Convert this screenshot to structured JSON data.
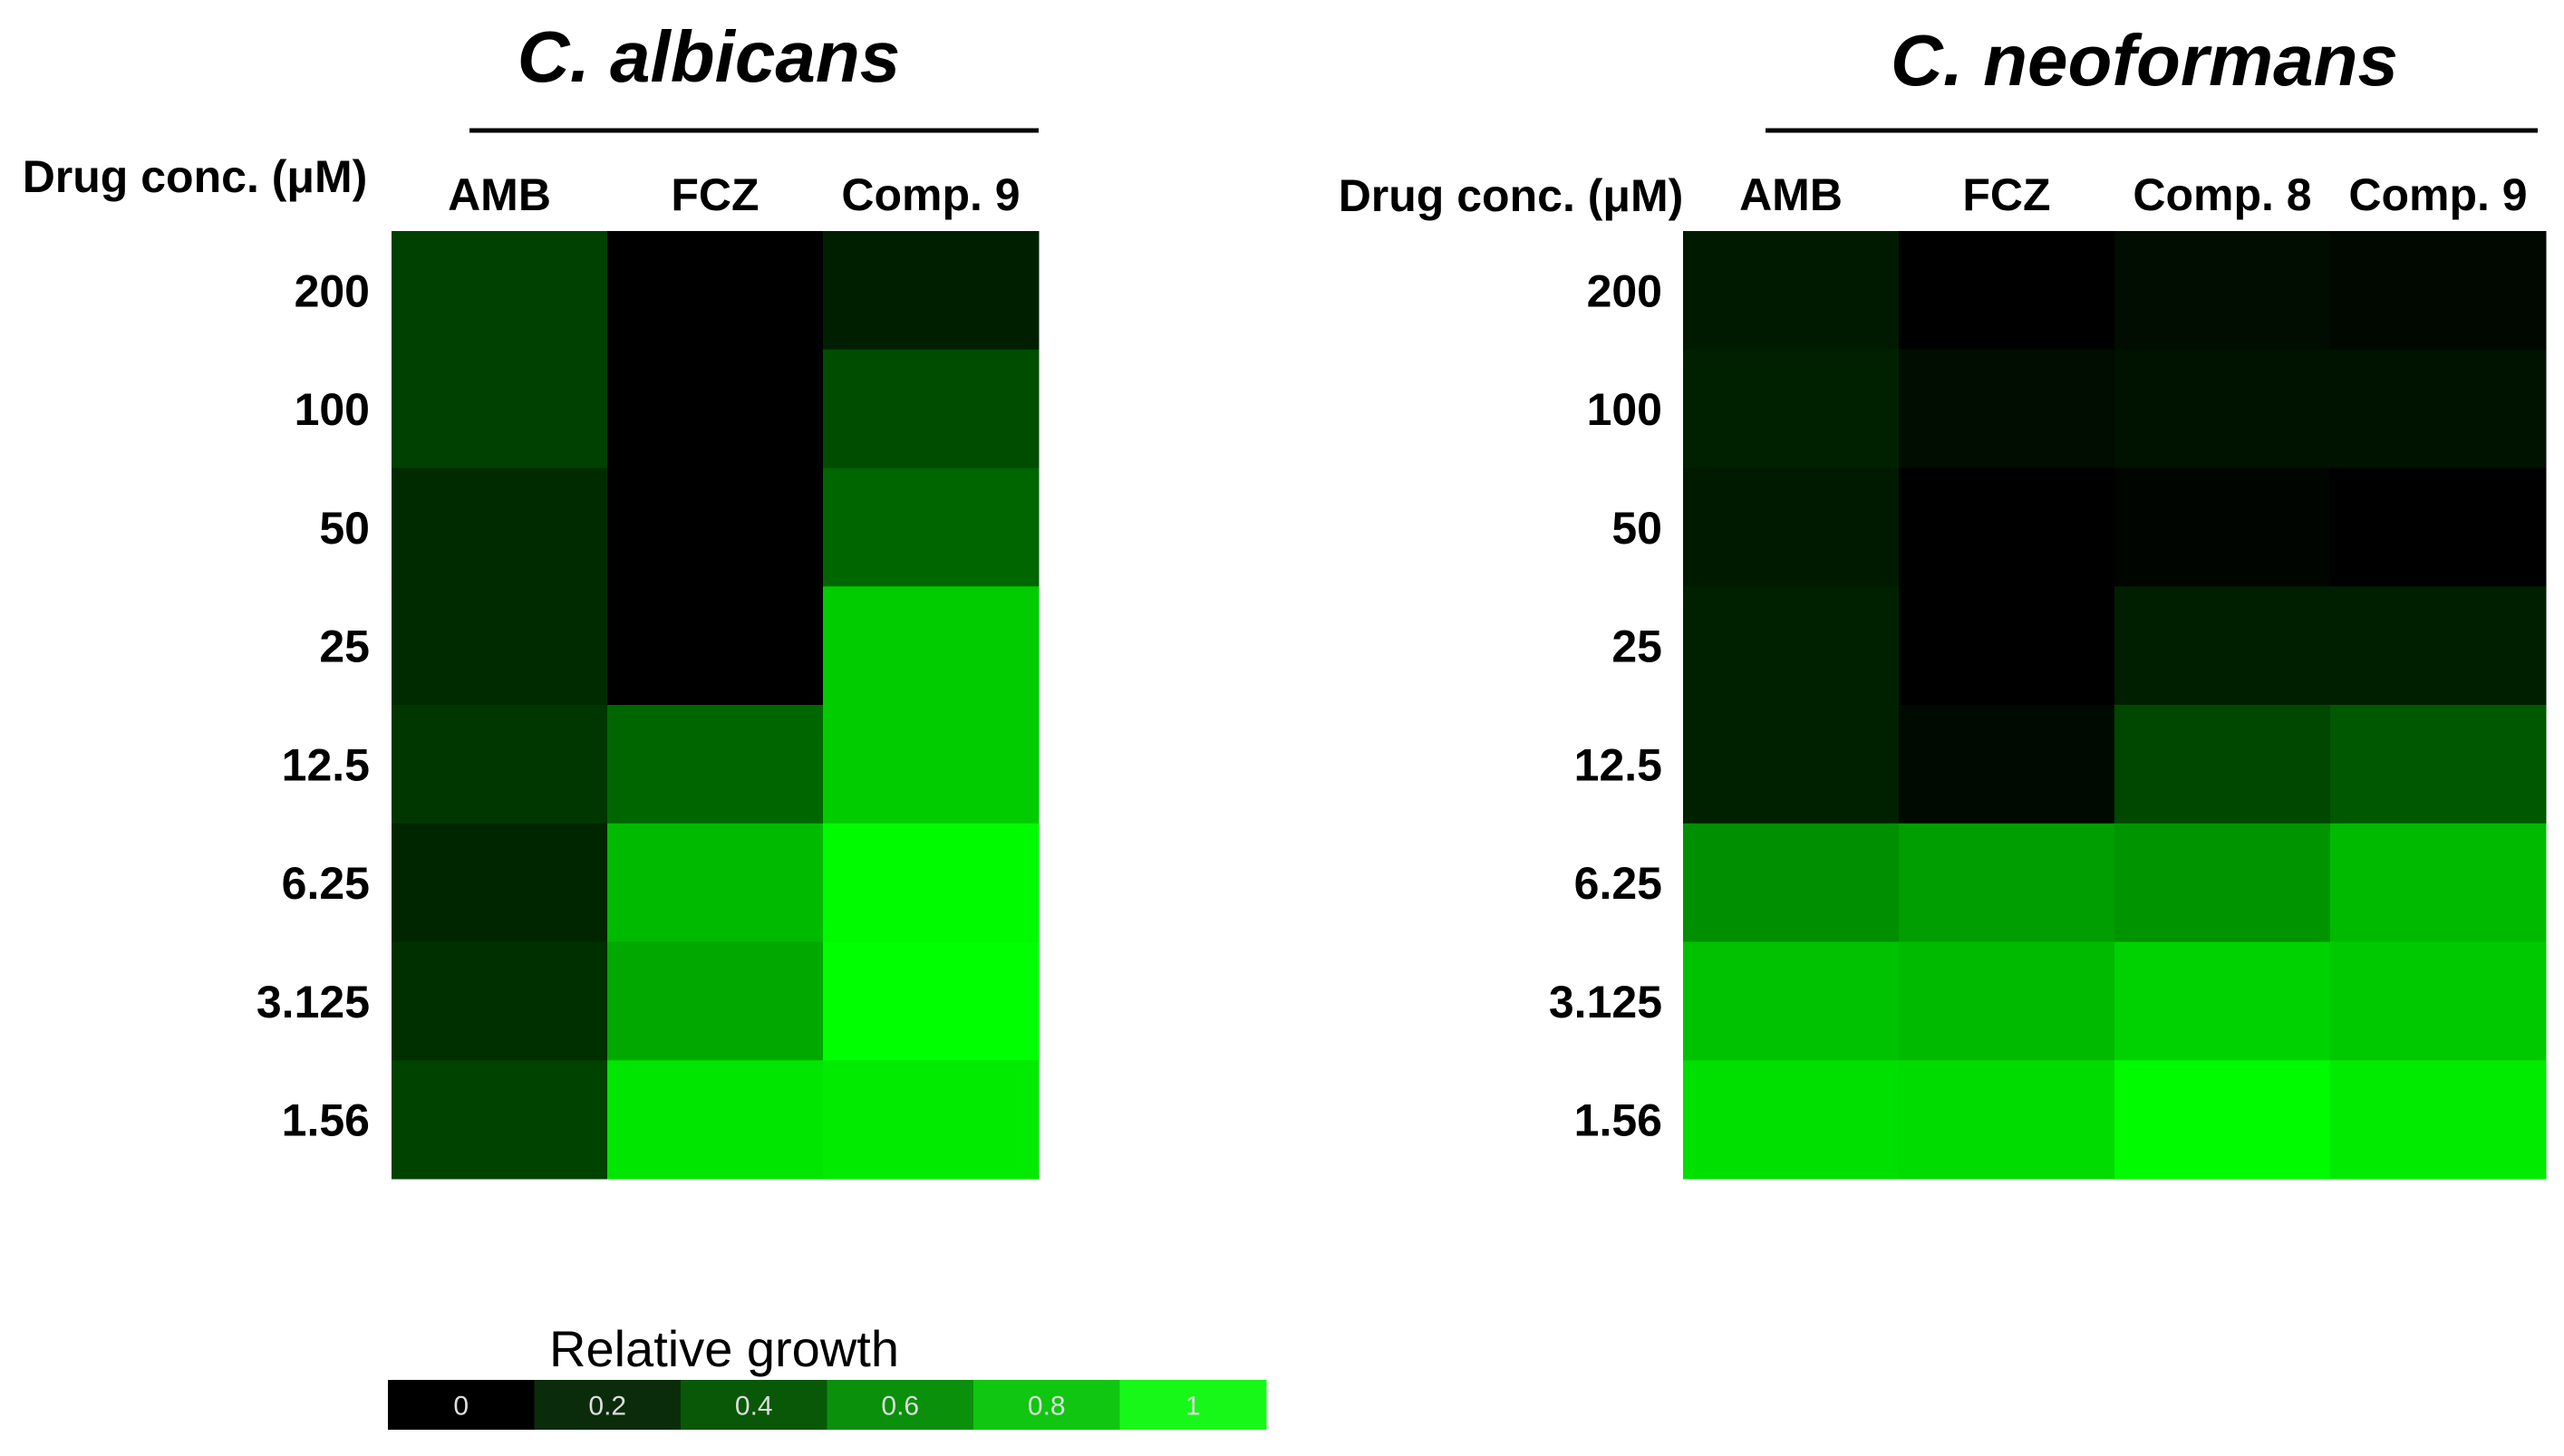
{
  "chart_data": [
    {
      "type": "heatmap",
      "title": "C. albicans",
      "row_label": "Drug conc. (μM)",
      "columns": [
        "AMB",
        "FCZ",
        "Comp. 9"
      ],
      "rows": [
        "200",
        "100",
        "50",
        "25",
        "12.5",
        "6.25",
        "3.125",
        "1.56"
      ],
      "values": [
        [
          0.25,
          0.0,
          0.12
        ],
        [
          0.25,
          0.0,
          0.3
        ],
        [
          0.17,
          0.0,
          0.4
        ],
        [
          0.17,
          0.0,
          0.8
        ],
        [
          0.21,
          0.4,
          0.8
        ],
        [
          0.15,
          0.73,
          0.98
        ],
        [
          0.19,
          0.66,
          1.0
        ],
        [
          0.26,
          0.9,
          0.92
        ]
      ]
    },
    {
      "type": "heatmap",
      "title": "C. neoformans",
      "row_label": "Drug conc. (μM)",
      "columns": [
        "AMB",
        "FCZ",
        "Comp. 8",
        "Comp. 9"
      ],
      "rows": [
        "200",
        "100",
        "50",
        "25",
        "12.5",
        "6.25",
        "3.125",
        "1.56"
      ],
      "values": [
        [
          0.1,
          0.0,
          0.05,
          0.03
        ],
        [
          0.13,
          0.05,
          0.07,
          0.07
        ],
        [
          0.1,
          0.0,
          0.02,
          0.0
        ],
        [
          0.13,
          0.0,
          0.12,
          0.12
        ],
        [
          0.13,
          0.04,
          0.28,
          0.35
        ],
        [
          0.56,
          0.62,
          0.58,
          0.73
        ],
        [
          0.76,
          0.73,
          0.82,
          0.79
        ],
        [
          0.88,
          0.86,
          0.98,
          0.92
        ]
      ]
    }
  ],
  "legend": {
    "title": "Relative  growth",
    "ticks": [
      "0",
      "0.2",
      "0.4",
      "0.6",
      "0.8",
      "1"
    ],
    "colors": [
      "#000000",
      "#0a2c0a",
      "#085808",
      "#0a900a",
      "#10c610",
      "#18f818"
    ]
  },
  "colormap": {
    "low": "#000000",
    "high": "#00ff00"
  }
}
